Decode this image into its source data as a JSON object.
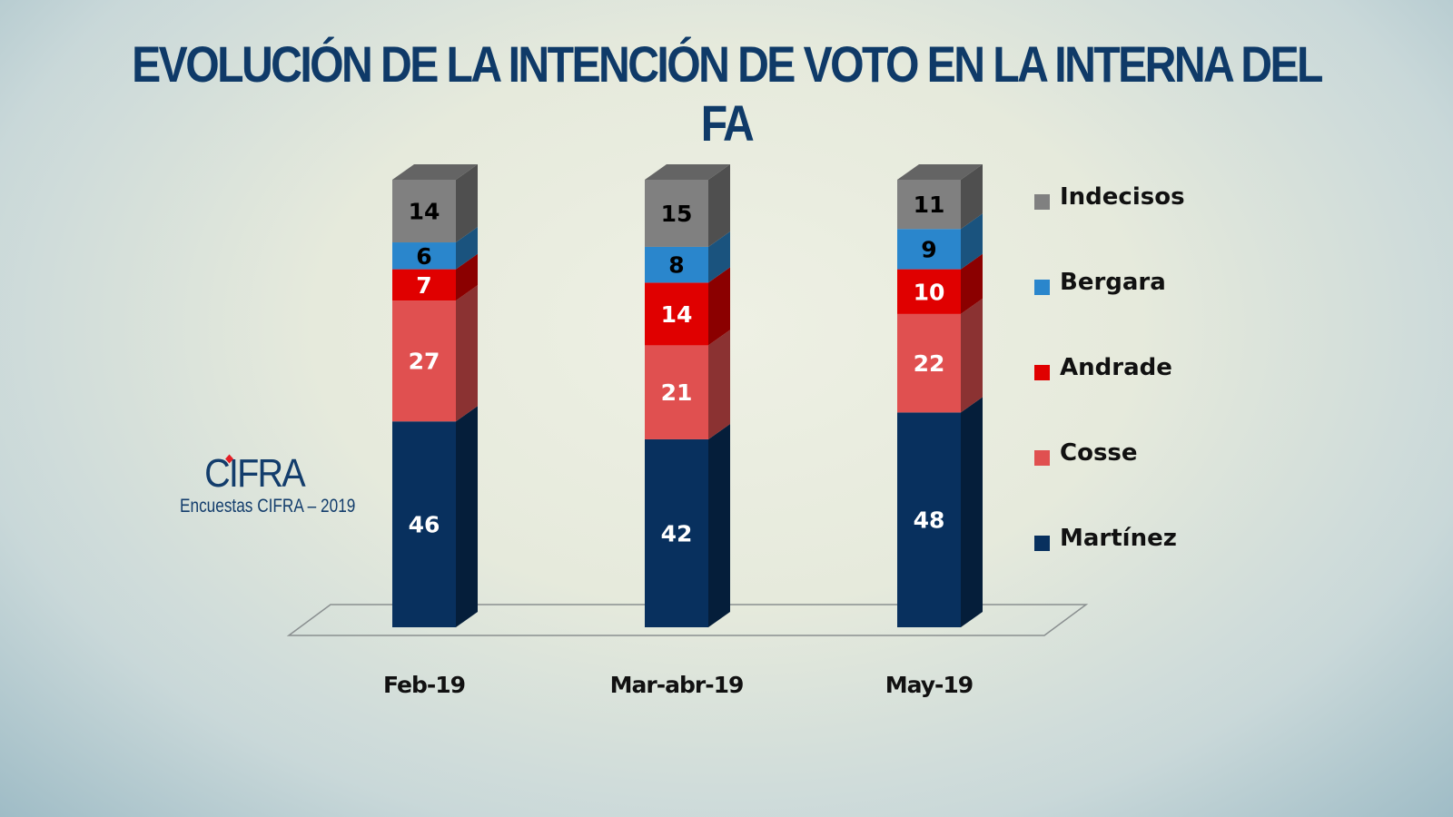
{
  "title": "EVOLUCIÓN DE LA INTENCIÓN DE VOTO EN LA INTERNA DEL FA",
  "logo": {
    "mark": "CIFRA",
    "subtitle": "Encuestas CIFRA – 2019"
  },
  "chart_data": {
    "type": "bar",
    "stacked": true,
    "style": "3d-column",
    "title": "EVOLUCIÓN DE LA INTENCIÓN DE VOTO EN LA INTERNA DEL FA",
    "xlabel": "",
    "ylabel": "",
    "ylim": [
      0,
      100
    ],
    "grid": false,
    "legend_position": "right",
    "categories": [
      "Feb-19",
      "Mar-abr-19",
      "May-19"
    ],
    "series": [
      {
        "name": "Martínez",
        "color": "#08305e",
        "label_color": "#ffffff",
        "values": [
          46,
          42,
          48
        ]
      },
      {
        "name": "Cosse",
        "color": "#e05050",
        "label_color": "#ffffff",
        "values": [
          27,
          21,
          22
        ]
      },
      {
        "name": "Andrade",
        "color": "#e00000",
        "label_color": "#ffffff",
        "values": [
          7,
          14,
          10
        ]
      },
      {
        "name": "Bergara",
        "color": "#2a86cc",
        "label_color": "#000000",
        "values": [
          6,
          8,
          9
        ]
      },
      {
        "name": "Indecisos",
        "color": "#808080",
        "label_color": "#000000",
        "values": [
          14,
          15,
          11
        ]
      }
    ],
    "legend_order": [
      "Indecisos",
      "Bergara",
      "Andrade",
      "Cosse",
      "Martínez"
    ]
  }
}
